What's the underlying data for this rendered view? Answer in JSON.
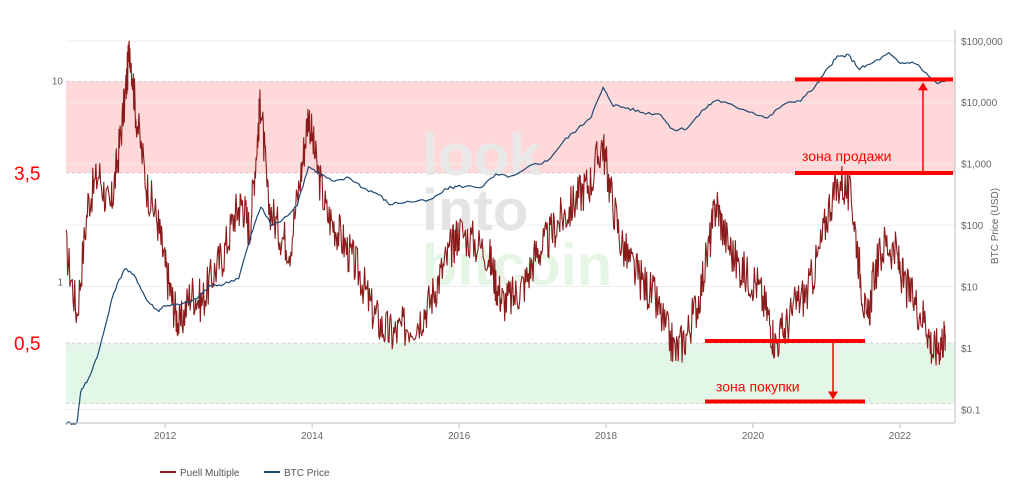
{
  "chart_data": {
    "type": "line",
    "x_range": [
      2010.65,
      2022.75
    ],
    "left_axis": {
      "scale": "log",
      "range": [
        0.2,
        18
      ],
      "tick_values": [
        10,
        1
      ]
    },
    "right_axis": {
      "scale": "log",
      "range": [
        0.06,
        150000
      ],
      "label": "BTC Price (USD)",
      "ticks": [
        {
          "v": 100000,
          "t": "$100,000"
        },
        {
          "v": 10000,
          "t": "$10,000"
        },
        {
          "v": 1000,
          "t": "$1,000"
        },
        {
          "v": 100,
          "t": "$100"
        },
        {
          "v": 10,
          "t": "$10"
        },
        {
          "v": 1,
          "t": "$1"
        },
        {
          "v": 0.1,
          "t": "$0.1"
        }
      ]
    },
    "x_ticks": [
      2012,
      2014,
      2016,
      2018,
      2020,
      2022
    ],
    "grid": true,
    "series": [
      {
        "name": "Puell Multiple",
        "axis": "left",
        "color": "#8b1a1a",
        "points": [
          [
            2010.65,
            1.5
          ],
          [
            2010.8,
            0.7
          ],
          [
            2010.95,
            2.5
          ],
          [
            2011.1,
            3.5
          ],
          [
            2011.25,
            2.2
          ],
          [
            2011.35,
            4
          ],
          [
            2011.45,
            8
          ],
          [
            2011.52,
            15
          ],
          [
            2011.6,
            7
          ],
          [
            2011.75,
            3
          ],
          [
            2011.9,
            2
          ],
          [
            2012.0,
            1.2
          ],
          [
            2012.1,
            0.8
          ],
          [
            2012.2,
            0.6
          ],
          [
            2012.35,
            0.9
          ],
          [
            2012.5,
            0.8
          ],
          [
            2012.65,
            1.1
          ],
          [
            2012.8,
            1.4
          ],
          [
            2012.95,
            2.2
          ],
          [
            2013.05,
            2.5
          ],
          [
            2013.15,
            1.8
          ],
          [
            2013.25,
            5
          ],
          [
            2013.3,
            8
          ],
          [
            2013.4,
            2.5
          ],
          [
            2013.55,
            1.8
          ],
          [
            2013.7,
            1.5
          ],
          [
            2013.85,
            3.5
          ],
          [
            2013.95,
            7
          ],
          [
            2014.05,
            4
          ],
          [
            2014.2,
            2.2
          ],
          [
            2014.35,
            1.8
          ],
          [
            2014.5,
            1.4
          ],
          [
            2014.65,
            1.1
          ],
          [
            2014.8,
            0.75
          ],
          [
            2014.95,
            0.6
          ],
          [
            2015.1,
            0.55
          ],
          [
            2015.25,
            0.6
          ],
          [
            2015.45,
            0.65
          ],
          [
            2015.6,
            0.8
          ],
          [
            2015.75,
            1.1
          ],
          [
            2015.9,
            1.5
          ],
          [
            2016.0,
            1.8
          ],
          [
            2016.2,
            1.6
          ],
          [
            2016.4,
            1.4
          ],
          [
            2016.5,
            1.0
          ],
          [
            2016.6,
            0.8
          ],
          [
            2016.75,
            0.85
          ],
          [
            2016.9,
            1.0
          ],
          [
            2017.05,
            1.4
          ],
          [
            2017.2,
            1.6
          ],
          [
            2017.35,
            2.0
          ],
          [
            2017.5,
            2.3
          ],
          [
            2017.65,
            2.8
          ],
          [
            2017.8,
            3.2
          ],
          [
            2017.95,
            5
          ],
          [
            2018.05,
            3
          ],
          [
            2018.2,
            1.6
          ],
          [
            2018.35,
            1.2
          ],
          [
            2018.5,
            1.0
          ],
          [
            2018.65,
            0.85
          ],
          [
            2018.8,
            0.6
          ],
          [
            2018.95,
            0.45
          ],
          [
            2019.1,
            0.55
          ],
          [
            2019.25,
            0.8
          ],
          [
            2019.4,
            1.5
          ],
          [
            2019.5,
            2.5
          ],
          [
            2019.6,
            1.8
          ],
          [
            2019.75,
            1.3
          ],
          [
            2019.9,
            1.1
          ],
          [
            2020.05,
            1.0
          ],
          [
            2020.2,
            0.7
          ],
          [
            2020.3,
            0.5
          ],
          [
            2020.45,
            0.6
          ],
          [
            2020.6,
            0.8
          ],
          [
            2020.75,
            0.9
          ],
          [
            2020.9,
            1.4
          ],
          [
            2021.05,
            2.5
          ],
          [
            2021.2,
            3.2
          ],
          [
            2021.35,
            2.5
          ],
          [
            2021.45,
            1.2
          ],
          [
            2021.55,
            0.6
          ],
          [
            2021.65,
            1.1
          ],
          [
            2021.8,
            1.6
          ],
          [
            2021.95,
            1.4
          ],
          [
            2022.05,
            1.0
          ],
          [
            2022.2,
            0.8
          ],
          [
            2022.35,
            0.65
          ],
          [
            2022.45,
            0.45
          ],
          [
            2022.55,
            0.5
          ],
          [
            2022.62,
            0.55
          ]
        ]
      },
      {
        "name": "BTC Price",
        "axis": "right",
        "color": "#1e4a72",
        "points": [
          [
            2010.65,
            0.06
          ],
          [
            2010.8,
            0.06
          ],
          [
            2010.85,
            0.2
          ],
          [
            2010.95,
            0.3
          ],
          [
            2011.1,
            0.9
          ],
          [
            2011.3,
            8
          ],
          [
            2011.45,
            20
          ],
          [
            2011.6,
            14
          ],
          [
            2011.75,
            6
          ],
          [
            2011.9,
            4
          ],
          [
            2012.0,
            5
          ],
          [
            2012.2,
            5
          ],
          [
            2012.4,
            6
          ],
          [
            2012.6,
            10
          ],
          [
            2012.8,
            11
          ],
          [
            2013.0,
            14
          ],
          [
            2013.2,
            90
          ],
          [
            2013.3,
            200
          ],
          [
            2013.45,
            100
          ],
          [
            2013.6,
            120
          ],
          [
            2013.8,
            220
          ],
          [
            2013.95,
            900
          ],
          [
            2014.1,
            700
          ],
          [
            2014.3,
            500
          ],
          [
            2014.5,
            600
          ],
          [
            2014.7,
            400
          ],
          [
            2014.9,
            320
          ],
          [
            2015.05,
            220
          ],
          [
            2015.3,
            240
          ],
          [
            2015.6,
            250
          ],
          [
            2015.85,
            400
          ],
          [
            2016.0,
            430
          ],
          [
            2016.3,
            420
          ],
          [
            2016.5,
            650
          ],
          [
            2016.75,
            620
          ],
          [
            2017.0,
            950
          ],
          [
            2017.2,
            1100
          ],
          [
            2017.45,
            2500
          ],
          [
            2017.65,
            4000
          ],
          [
            2017.8,
            6000
          ],
          [
            2017.96,
            17000
          ],
          [
            2018.1,
            9000
          ],
          [
            2018.3,
            8000
          ],
          [
            2018.5,
            6800
          ],
          [
            2018.75,
            6400
          ],
          [
            2018.9,
            3500
          ],
          [
            2019.1,
            3800
          ],
          [
            2019.35,
            8000
          ],
          [
            2019.5,
            11000
          ],
          [
            2019.7,
            9000
          ],
          [
            2019.95,
            7200
          ],
          [
            2020.2,
            5500
          ],
          [
            2020.4,
            9000
          ],
          [
            2020.65,
            11000
          ],
          [
            2020.85,
            18000
          ],
          [
            2021.0,
            33000
          ],
          [
            2021.15,
            55000
          ],
          [
            2021.3,
            58000
          ],
          [
            2021.45,
            35000
          ],
          [
            2021.6,
            42000
          ],
          [
            2021.85,
            62000
          ],
          [
            2022.0,
            43000
          ],
          [
            2022.2,
            45000
          ],
          [
            2022.35,
            30000
          ],
          [
            2022.5,
            20000
          ],
          [
            2022.62,
            22000
          ]
        ]
      }
    ],
    "zones": [
      {
        "name": "sell",
        "from": 3.5,
        "to": 10,
        "color": "#ffd9d9"
      },
      {
        "name": "buy",
        "from": 0.25,
        "to": 0.5,
        "color": "#e3f7e8"
      }
    ],
    "level_labels": [
      {
        "v": 3.5,
        "t": "3,5"
      },
      {
        "v": 0.5,
        "t": "0,5"
      }
    ],
    "annotations": {
      "sell_label": "зона продажи",
      "buy_label": "зона покупки"
    },
    "watermark": [
      "look",
      "into",
      "bitcoin"
    ],
    "legend": {
      "placement": "bottom"
    }
  }
}
